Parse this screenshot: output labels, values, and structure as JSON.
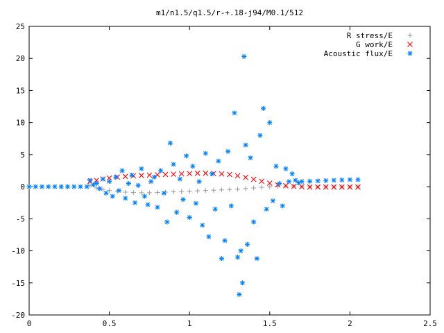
{
  "chart_data": {
    "type": "scatter",
    "title": "m1/n1.5/q1.5/r-+.18-j94/M0.1/512",
    "xlabel": "",
    "ylabel": "",
    "xlim": [
      0,
      2.5
    ],
    "ylim": [
      -20,
      25
    ],
    "xticks": [
      0,
      0.5,
      1,
      1.5,
      2,
      2.5
    ],
    "xtick_labels": [
      "0",
      "0.5",
      "1",
      "1.5",
      "2",
      "2.5"
    ],
    "yticks": [
      -20,
      -15,
      -10,
      -5,
      0,
      5,
      10,
      15,
      20,
      25
    ],
    "ytick_labels": [
      "-20",
      "-15",
      "-10",
      "-5",
      "0",
      "5",
      "10",
      "15",
      "20",
      "25"
    ],
    "grid": false,
    "legend_position": "top-right",
    "series": [
      {
        "name": "R stress/E",
        "marker": "plus",
        "color": "#a0a0a0",
        "points": [
          [
            0.38,
            0.2
          ],
          [
            0.42,
            -0.2
          ],
          [
            0.46,
            -0.45
          ],
          [
            0.5,
            -0.6
          ],
          [
            0.55,
            -0.75
          ],
          [
            0.6,
            -0.85
          ],
          [
            0.65,
            -0.9
          ],
          [
            0.7,
            -0.95
          ],
          [
            0.75,
            -0.95
          ],
          [
            0.8,
            -0.9
          ],
          [
            0.85,
            -0.85
          ],
          [
            0.9,
            -0.8
          ],
          [
            0.95,
            -0.75
          ],
          [
            1.0,
            -0.7
          ],
          [
            1.05,
            -0.65
          ],
          [
            1.1,
            -0.6
          ],
          [
            1.15,
            -0.55
          ],
          [
            1.2,
            -0.5
          ],
          [
            1.25,
            -0.45
          ],
          [
            1.3,
            -0.4
          ],
          [
            1.35,
            -0.3
          ],
          [
            1.4,
            -0.2
          ],
          [
            1.45,
            -0.1
          ],
          [
            1.5,
            0.0
          ],
          [
            1.55,
            0.05
          ],
          [
            1.6,
            0.1
          ],
          [
            1.65,
            0.1
          ],
          [
            1.7,
            0.05
          ],
          [
            1.75,
            0.0
          ],
          [
            1.8,
            0.0
          ],
          [
            1.85,
            0.0
          ],
          [
            1.9,
            0.0
          ],
          [
            1.95,
            0.0
          ],
          [
            2.0,
            0.0
          ],
          [
            2.05,
            0.0
          ]
        ]
      },
      {
        "name": "G work/E",
        "marker": "cross",
        "color": "#ff0000",
        "points": [
          [
            0.38,
            0.8
          ],
          [
            0.42,
            1.0
          ],
          [
            0.46,
            1.2
          ],
          [
            0.5,
            1.35
          ],
          [
            0.55,
            1.5
          ],
          [
            0.6,
            1.6
          ],
          [
            0.65,
            1.7
          ],
          [
            0.7,
            1.75
          ],
          [
            0.75,
            1.8
          ],
          [
            0.8,
            1.85
          ],
          [
            0.85,
            1.9
          ],
          [
            0.9,
            1.95
          ],
          [
            0.95,
            2.0
          ],
          [
            1.0,
            2.05
          ],
          [
            1.05,
            2.1
          ],
          [
            1.1,
            2.1
          ],
          [
            1.15,
            2.05
          ],
          [
            1.2,
            2.0
          ],
          [
            1.25,
            1.9
          ],
          [
            1.3,
            1.7
          ],
          [
            1.35,
            1.45
          ],
          [
            1.4,
            1.15
          ],
          [
            1.45,
            0.85
          ],
          [
            1.5,
            0.55
          ],
          [
            1.55,
            0.3
          ],
          [
            1.6,
            0.15
          ],
          [
            1.65,
            0.05
          ],
          [
            1.7,
            0.0
          ],
          [
            1.75,
            -0.05
          ],
          [
            1.8,
            -0.05
          ],
          [
            1.85,
            -0.05
          ],
          [
            1.9,
            -0.05
          ],
          [
            1.95,
            -0.05
          ],
          [
            2.0,
            -0.05
          ],
          [
            2.05,
            -0.05
          ]
        ]
      },
      {
        "name": "Acoustic flux/E",
        "marker": "star",
        "color": "#0080ff",
        "points": [
          [
            0.0,
            0.0
          ],
          [
            0.04,
            0.0
          ],
          [
            0.08,
            0.0
          ],
          [
            0.12,
            0.0
          ],
          [
            0.16,
            0.0
          ],
          [
            0.2,
            0.0
          ],
          [
            0.24,
            0.0
          ],
          [
            0.28,
            0.0
          ],
          [
            0.32,
            0.0
          ],
          [
            0.36,
            0.0
          ],
          [
            0.38,
            1.0
          ],
          [
            0.4,
            0.3
          ],
          [
            0.42,
            0.5
          ],
          [
            0.44,
            -0.3
          ],
          [
            0.46,
            1.2
          ],
          [
            0.48,
            -1.0
          ],
          [
            0.5,
            0.8
          ],
          [
            0.52,
            -1.5
          ],
          [
            0.54,
            1.5
          ],
          [
            0.56,
            -0.6
          ],
          [
            0.58,
            2.5
          ],
          [
            0.6,
            -1.8
          ],
          [
            0.62,
            0.5
          ],
          [
            0.64,
            1.8
          ],
          [
            0.66,
            -2.5
          ],
          [
            0.68,
            0.2
          ],
          [
            0.7,
            2.8
          ],
          [
            0.72,
            -1.5
          ],
          [
            0.74,
            -2.8
          ],
          [
            0.76,
            0.8
          ],
          [
            0.78,
            1.5
          ],
          [
            0.8,
            -3.2
          ],
          [
            0.82,
            2.5
          ],
          [
            0.84,
            -1.0
          ],
          [
            0.86,
            -5.5
          ],
          [
            0.88,
            6.8
          ],
          [
            0.9,
            3.5
          ],
          [
            0.92,
            -4.0
          ],
          [
            0.94,
            1.2
          ],
          [
            0.96,
            -2.0
          ],
          [
            0.98,
            4.8
          ],
          [
            1.0,
            -4.8
          ],
          [
            1.02,
            3.2
          ],
          [
            1.04,
            -2.6
          ],
          [
            1.06,
            0.8
          ],
          [
            1.08,
            -6.0
          ],
          [
            1.1,
            5.2
          ],
          [
            1.12,
            -7.8
          ],
          [
            1.14,
            2.0
          ],
          [
            1.16,
            -3.5
          ],
          [
            1.18,
            4.0
          ],
          [
            1.2,
            -11.2
          ],
          [
            1.22,
            -8.4
          ],
          [
            1.24,
            5.5
          ],
          [
            1.26,
            -3.0
          ],
          [
            1.28,
            11.5
          ],
          [
            1.3,
            -11.0
          ],
          [
            1.31,
            -16.8
          ],
          [
            1.32,
            -10.0
          ],
          [
            1.33,
            -15.0
          ],
          [
            1.34,
            20.3
          ],
          [
            1.35,
            6.5
          ],
          [
            1.36,
            -9.0
          ],
          [
            1.38,
            4.5
          ],
          [
            1.4,
            -5.5
          ],
          [
            1.42,
            -11.2
          ],
          [
            1.44,
            8.0
          ],
          [
            1.46,
            12.2
          ],
          [
            1.48,
            -3.5
          ],
          [
            1.5,
            10.0
          ],
          [
            1.52,
            -2.2
          ],
          [
            1.54,
            3.2
          ],
          [
            1.56,
            0.5
          ],
          [
            1.58,
            -3.0
          ],
          [
            1.6,
            2.8
          ],
          [
            1.62,
            0.8
          ],
          [
            1.64,
            2.0
          ],
          [
            1.66,
            1.0
          ],
          [
            1.68,
            0.6
          ],
          [
            1.7,
            0.8
          ],
          [
            1.75,
            0.85
          ],
          [
            1.8,
            0.9
          ],
          [
            1.85,
            0.95
          ],
          [
            1.9,
            1.0
          ],
          [
            1.95,
            1.05
          ],
          [
            2.0,
            1.1
          ],
          [
            2.05,
            1.1
          ]
        ]
      }
    ]
  }
}
